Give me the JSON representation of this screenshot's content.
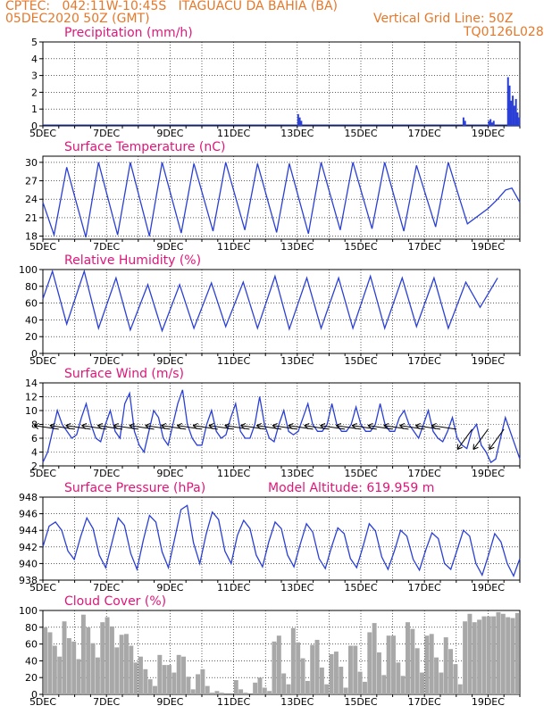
{
  "header": {
    "line1": "CPTEC:   042:11W-10:45S   ITAGUACU DA BAHIA (BA)",
    "line2_left": "05DEC2020 50Z (GMT)",
    "line2_right": "Vertical Grid Line: 50Z",
    "line3_right": "TQ0126L028"
  },
  "colors": {
    "header": "#e6782a",
    "title": "#e0157a",
    "line": "#2a3fd6",
    "cloud": "#a8a8a8"
  },
  "x_labels": [
    "5DEC",
    "7DEC",
    "9DEC",
    "11DEC",
    "13DEC",
    "15DEC",
    "17DEC",
    "19DEC"
  ],
  "x_days_range": [
    5,
    20
  ],
  "chart_data": [
    {
      "type": "bar",
      "title": "Precipitation (mm/h)",
      "ylim": [
        0,
        5
      ],
      "yticks": [
        0,
        1,
        2,
        3,
        4,
        5
      ],
      "x": [
        13.0,
        13.05,
        13.1,
        18.2,
        18.25,
        19.0,
        19.05,
        19.1,
        19.15,
        19.6,
        19.65,
        19.7,
        19.75,
        19.8,
        19.85,
        19.9,
        19.95
      ],
      "values": [
        0.7,
        0.5,
        0.3,
        0.5,
        0.3,
        0.3,
        0.4,
        0.2,
        0.3,
        2.9,
        2.4,
        1.5,
        1.8,
        1.2,
        1.6,
        0.8,
        0.5
      ]
    },
    {
      "type": "line",
      "title": "Surface Temperature (nC)",
      "ylim": [
        17.5,
        31
      ],
      "yticks": [
        18,
        21,
        24,
        27,
        30
      ],
      "day_min": [
        18.0,
        17.8,
        18.2,
        18.0,
        18.5,
        18.8,
        19.0,
        18.6,
        18.4,
        19.0,
        19.2,
        18.8,
        19.5,
        20.0
      ],
      "day_max": [
        29.2,
        30.0,
        30.0,
        30.0,
        29.8,
        30.0,
        29.8,
        29.8,
        30.0,
        30.0,
        30.0,
        29.5,
        30.0,
        25.5
      ],
      "final_hours": [
        [
          19.0,
          22.5
        ],
        [
          19.3,
          24.0
        ],
        [
          19.55,
          25.5
        ],
        [
          19.75,
          25.8
        ],
        [
          20.0,
          23.5
        ]
      ]
    },
    {
      "type": "line",
      "title": "Relative Humidity (%)",
      "ylim": [
        0,
        100
      ],
      "yticks": [
        0,
        20,
        40,
        60,
        80,
        100
      ],
      "day_min": [
        35,
        30,
        28,
        27,
        30,
        32,
        30,
        29,
        30,
        30,
        30,
        32,
        30,
        55
      ],
      "day_max": [
        98,
        90,
        82,
        82,
        84,
        85,
        92,
        90,
        90,
        92,
        90,
        90,
        85,
        90
      ]
    },
    {
      "type": "line",
      "title": "Surface Wind (m/s)",
      "ylim": [
        2,
        14
      ],
      "yticks": [
        2,
        4,
        6,
        8,
        10,
        12,
        14
      ],
      "speeds": [
        2.5,
        4,
        7,
        10,
        8,
        7,
        6,
        6.5,
        9,
        11,
        8,
        6,
        5.5,
        8,
        10,
        7,
        6,
        11,
        12.5,
        7,
        5,
        4,
        7,
        10,
        9,
        6,
        5,
        8,
        11,
        13,
        8,
        6,
        5,
        5,
        8,
        10,
        7,
        6,
        6.5,
        9,
        11,
        7,
        6,
        6,
        8,
        12,
        8,
        6,
        5.5,
        8,
        10,
        7,
        6.5,
        7,
        9,
        11,
        8,
        7,
        7,
        8,
        11,
        8,
        7,
        7,
        8,
        10.5,
        8,
        7,
        7,
        8,
        11,
        8,
        7,
        7,
        9,
        10,
        8,
        7,
        6,
        8,
        10,
        7,
        6,
        5.5,
        7,
        9,
        6,
        5,
        4.5,
        7,
        8,
        5,
        4,
        2.5,
        3,
        6,
        9,
        7,
        5,
        3
      ]
    },
    {
      "type": "line",
      "title": "Surface Pressure (hPa)",
      "annotation": "Model Altitude: 619.959 m",
      "ylim": [
        938,
        948
      ],
      "yticks": [
        938,
        940,
        942,
        944,
        946,
        948
      ],
      "values": [
        942,
        944.5,
        945,
        944,
        941.5,
        940.5,
        943.2,
        945.5,
        944.2,
        941,
        939.5,
        942.5,
        945.5,
        944.6,
        941.2,
        939.3,
        942.8,
        945.8,
        945,
        941.4,
        939.5,
        943,
        946.5,
        947,
        942.5,
        940,
        943.5,
        946.2,
        945.3,
        941.5,
        940,
        943.4,
        945.2,
        944.2,
        941,
        939.6,
        942.6,
        945,
        944.2,
        941,
        939.6,
        942.3,
        944.8,
        943.8,
        940.6,
        939.4,
        942,
        944.3,
        943.6,
        940.6,
        939.5,
        942,
        944.8,
        943.9,
        940.8,
        939.3,
        941.5,
        944,
        943.3,
        940.5,
        939.2,
        941.6,
        943.7,
        943,
        940,
        939.3,
        941.6,
        944,
        943.3,
        940,
        938.6,
        941,
        943.6,
        942.6,
        940,
        938.5,
        940.6
      ]
    },
    {
      "type": "bar",
      "title": "Cloud Cover (%)",
      "ylim": [
        0,
        100
      ],
      "yticks": [
        0,
        20,
        40,
        60,
        80,
        100
      ],
      "values": [
        80,
        74,
        58,
        45,
        87,
        67,
        63,
        42,
        95,
        80,
        61,
        44,
        86,
        92,
        81,
        56,
        71,
        72,
        58,
        38,
        45,
        30,
        18,
        10,
        47,
        35,
        35,
        26,
        47,
        45,
        21,
        6,
        24,
        30,
        10,
        2,
        4,
        2,
        0,
        0,
        17,
        6,
        2,
        0,
        14,
        20,
        8,
        4,
        63,
        70,
        25,
        12,
        79,
        62,
        43,
        16,
        59,
        65,
        32,
        12,
        48,
        51,
        33,
        8,
        58,
        58,
        27,
        15,
        74,
        85,
        50,
        23,
        70,
        70,
        38,
        22,
        86,
        78,
        55,
        26,
        70,
        72,
        44,
        26,
        68,
        54,
        36,
        12,
        87,
        96,
        86,
        89,
        93,
        93,
        93,
        98,
        96,
        92,
        91,
        97
      ]
    }
  ]
}
